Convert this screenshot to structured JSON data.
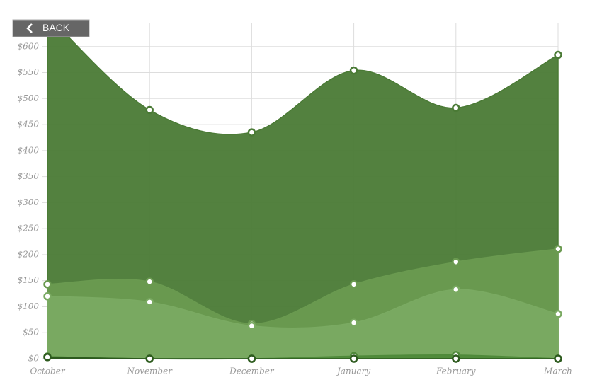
{
  "back_button": "BACK",
  "chart_data": {
    "type": "area",
    "categories": [
      "October",
      "November",
      "December",
      "January",
      "February",
      "March"
    ],
    "series": [
      {
        "color": "#4a7a35",
        "values": [
          660,
          478,
          435,
          554,
          482,
          584
        ]
      },
      {
        "color": "#6a9a50",
        "values": [
          143,
          148,
          67,
          143,
          186,
          211
        ]
      },
      {
        "color": "#7aaa62",
        "values": [
          120,
          109,
          63,
          69,
          133,
          86
        ]
      },
      {
        "color": "#4f8a3a",
        "values": [
          4,
          0,
          0,
          5,
          7,
          0
        ]
      },
      {
        "color": "#2d5a1e",
        "values": [
          3,
          0,
          0,
          0,
          0,
          0
        ]
      }
    ],
    "ylim": [
      0,
      650
    ],
    "yticks": [
      {
        "value": 0,
        "label": "$0"
      },
      {
        "value": 50,
        "label": "$50"
      },
      {
        "value": 100,
        "label": "$100"
      },
      {
        "value": 150,
        "label": "$150"
      },
      {
        "value": 200,
        "label": "$200"
      },
      {
        "value": 250,
        "label": "$250"
      },
      {
        "value": 300,
        "label": "$300"
      },
      {
        "value": 350,
        "label": "$350"
      },
      {
        "value": 400,
        "label": "$400"
      },
      {
        "value": 450,
        "label": "$450"
      },
      {
        "value": 500,
        "label": "$500"
      },
      {
        "value": 550,
        "label": "$550"
      },
      {
        "value": 600,
        "label": "$600"
      }
    ],
    "grid": true
  }
}
